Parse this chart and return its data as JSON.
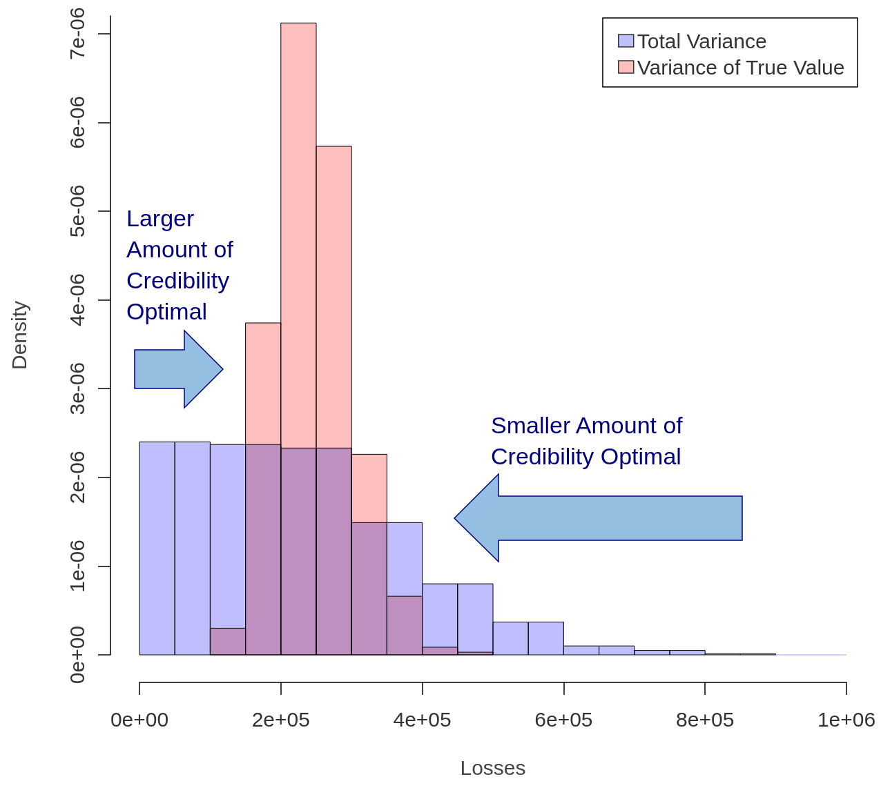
{
  "chart_data": {
    "type": "histogram",
    "xlabel": "Losses",
    "ylabel": "Density",
    "bins": [
      0,
      50000,
      100000,
      150000,
      200000,
      250000,
      300000,
      350000,
      400000,
      450000,
      500000,
      550000,
      600000,
      650000,
      700000,
      750000,
      800000,
      850000,
      900000,
      950000,
      1000000
    ],
    "series": [
      {
        "name": "Total Variance",
        "color": "#bfbfff",
        "values": [
          2.4e-06,
          2.4e-06,
          2.37e-06,
          2.37e-06,
          2.33e-06,
          2.33e-06,
          1.49e-06,
          1.49e-06,
          8e-07,
          8e-07,
          3.7e-07,
          3.7e-07,
          1e-07,
          1e-07,
          5e-08,
          5e-08,
          1e-08,
          1e-08,
          0,
          0
        ]
      },
      {
        "name": "Variance of True Value",
        "color": "#ffbfbf",
        "values": [
          null,
          null,
          3e-07,
          3.74e-06,
          7.12e-06,
          5.73e-06,
          2.26e-06,
          6.6e-07,
          8.6e-08,
          3e-08,
          null,
          null,
          null,
          null,
          null,
          null,
          null,
          null,
          null,
          null
        ]
      }
    ],
    "xlim": [
      0,
      1000000
    ],
    "ylim": [
      0,
      7.2e-06
    ],
    "xticks": [
      {
        "value": 0,
        "label": "0e+00"
      },
      {
        "value": 200000,
        "label": "2e+05"
      },
      {
        "value": 400000,
        "label": "4e+05"
      },
      {
        "value": 600000,
        "label": "6e+05"
      },
      {
        "value": 800000,
        "label": "8e+05"
      },
      {
        "value": 1000000,
        "label": "1e+06"
      }
    ],
    "yticks": [
      {
        "value": 0,
        "label": "0e+00"
      },
      {
        "value": 1e-06,
        "label": "1e-06"
      },
      {
        "value": 2e-06,
        "label": "2e-06"
      },
      {
        "value": 3e-06,
        "label": "3e-06"
      },
      {
        "value": 4e-06,
        "label": "4e-06"
      },
      {
        "value": 5e-06,
        "label": "5e-06"
      },
      {
        "value": 6e-06,
        "label": "6e-06"
      },
      {
        "value": 7e-06,
        "label": "7e-06"
      }
    ],
    "legend": "top right",
    "grid": false,
    "annotations": [
      "Larger\nAmount of\nCredibility\nOptimal",
      "Smaller Amount of\nCredibility Optimal"
    ]
  }
}
